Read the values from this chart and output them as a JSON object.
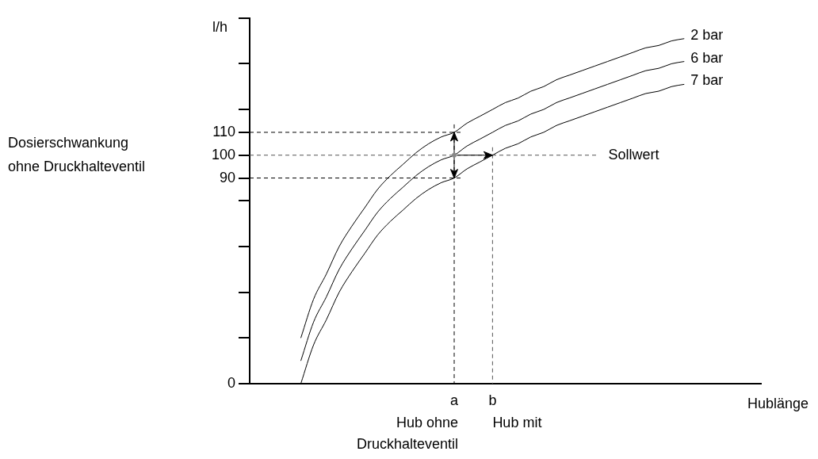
{
  "chart_data": {
    "type": "line",
    "ylabel": "l/h",
    "xlabel": "Hublänge",
    "categories": [
      null,
      null,
      null,
      null,
      null,
      null,
      null,
      null,
      null,
      null,
      null,
      null,
      null,
      null,
      null,
      null,
      "a",
      null,
      null,
      "b",
      null,
      null,
      null,
      null,
      null,
      null,
      null,
      null,
      null,
      null,
      null,
      null,
      null,
      null,
      null,
      null,
      null,
      null,
      null,
      null,
      null
    ],
    "series": [
      {
        "name": "2 bar",
        "color": "#000000",
        "values": [
          null,
          null,
          null,
          null,
          20,
          37,
          48,
          60,
          69,
          77,
          85,
          91,
          96,
          101,
          105,
          108,
          110,
          114,
          117,
          120,
          123,
          125,
          128,
          130,
          133,
          135,
          137,
          139,
          141,
          143,
          145,
          147,
          148,
          150,
          151,
          null,
          null,
          null,
          null,
          null,
          null
        ]
      },
      {
        "name": "6 bar",
        "color": "#000000",
        "values": [
          null,
          null,
          null,
          null,
          10,
          27,
          38,
          50,
          59,
          67,
          75,
          81,
          86,
          91,
          95,
          98,
          100,
          104,
          107,
          110,
          113,
          115,
          118,
          120,
          123,
          125,
          127,
          129,
          131,
          133,
          135,
          137,
          138,
          140,
          141,
          null,
          null,
          null,
          null,
          null,
          null
        ]
      },
      {
        "name": "7 bar",
        "color": "#000000",
        "values": [
          null,
          null,
          null,
          null,
          0,
          17,
          28,
          40,
          49,
          57,
          65,
          71,
          76,
          81,
          85,
          88,
          90,
          94,
          97,
          100,
          103,
          105,
          108,
          110,
          113,
          115,
          117,
          119,
          121,
          123,
          125,
          127,
          128,
          130,
          131,
          null,
          null,
          null,
          null,
          null,
          null
        ]
      }
    ],
    "ylim": [
      0,
      160
    ],
    "yticks": [
      0,
      {
        "value": 20,
        "label": null
      },
      {
        "value": 40,
        "label": null
      },
      {
        "value": 60,
        "label": null
      },
      {
        "value": 80,
        "label": null
      },
      90,
      100,
      110,
      {
        "value": 120,
        "label": null
      },
      {
        "value": 140,
        "label": null
      },
      {
        "value": 160,
        "label": null
      }
    ],
    "ref_lines": [
      {
        "axis": "y",
        "value": 110,
        "line_style": "dashed"
      },
      {
        "axis": "y",
        "value": 100,
        "label": "Sollwert",
        "line_style": "dashed",
        "color": "#555555"
      },
      {
        "axis": "y",
        "value": 90,
        "line_style": "dashed"
      },
      {
        "axis": "x",
        "value": "a",
        "line_style": "dashed"
      },
      {
        "axis": "x",
        "value": "b",
        "line_style": "dashed",
        "color": "#555555"
      }
    ],
    "annotations": [
      "Dosierschwankung ohne Druckhalteventil",
      "Hub ohne Druckhalteventil",
      "Hub mit"
    ],
    "grid": false,
    "legend": false,
    "marker": "none",
    "line_style": "solid"
  }
}
